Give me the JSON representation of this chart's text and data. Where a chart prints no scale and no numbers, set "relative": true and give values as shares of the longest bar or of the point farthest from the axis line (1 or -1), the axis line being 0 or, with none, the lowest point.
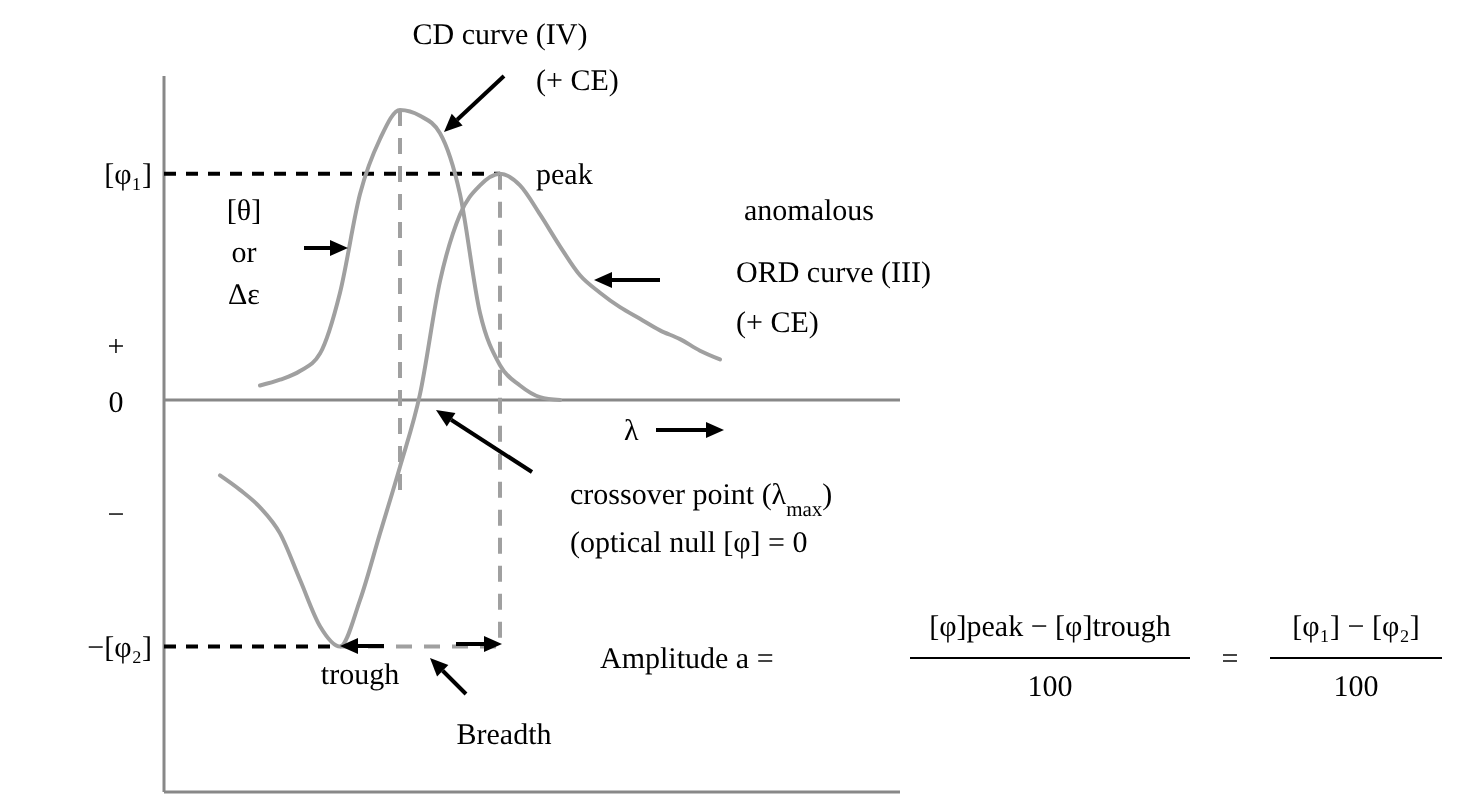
{
  "chart_data": {
    "type": "line",
    "relative": true,
    "legend": false,
    "line_style": "solid",
    "categories": [
      null,
      null,
      null,
      null,
      null,
      null,
      null,
      null,
      null,
      null,
      null,
      null,
      null,
      null,
      null,
      null,
      null,
      null,
      null,
      null,
      null,
      null,
      null,
      null,
      null,
      null,
      null,
      null,
      null,
      null,
      null,
      null,
      null,
      null,
      null,
      null,
      null
    ],
    "series": [
      {
        "name": "CD curve (IV)",
        "color": "#a0a0a0",
        "values": [
          null,
          null,
          null,
          null,
          0.05,
          0.07,
          0.1,
          0.16,
          0.37,
          0.71,
          0.9,
          1,
          0.98,
          0.92,
          0.71,
          0.3,
          0.12,
          0.05,
          0.01,
          0,
          null,
          null,
          null,
          null,
          null,
          null,
          null,
          null,
          null,
          null,
          null,
          null,
          null,
          null,
          null,
          null,
          null
        ]
      },
      {
        "name": "ORD curve (III)",
        "color": "#a0a0a0",
        "values": [
          null,
          null,
          -0.26,
          -0.31,
          -0.37,
          -0.46,
          -0.62,
          -0.78,
          -0.85,
          -0.69,
          -0.46,
          -0.23,
          0.02,
          0.41,
          0.64,
          0.74,
          0.78,
          0.74,
          0.64,
          0.53,
          0.43,
          0.37,
          0.32,
          0.28,
          0.24,
          0.21,
          0.17,
          0.14,
          null,
          null,
          null,
          null,
          null,
          null,
          null,
          null,
          null
        ]
      }
    ],
    "ref_lines": [
      {
        "axis": "y",
        "value": 0.78,
        "label": "[φ₁]",
        "color": "#000000",
        "line_style": "dashed"
      },
      {
        "axis": "y",
        "value": -0.85,
        "label": "−[φ₂]",
        "color": "#000000",
        "line_style": "dashed"
      }
    ],
    "annotations": [
      "(+ CE)",
      "peak",
      "[θ]",
      "or",
      "Δε",
      "anomalous",
      "(+ CE)",
      "λ",
      "crossover point (λ$_{max}$)",
      "(optical null [φ] = 0",
      "trough",
      "Breadth",
      "+",
      "0",
      "−",
      "Amplitude a =",
      "[φ]peak − [φ]trough",
      "100",
      "=",
      "[φ₁] − [φ₂]",
      "100"
    ]
  }
}
